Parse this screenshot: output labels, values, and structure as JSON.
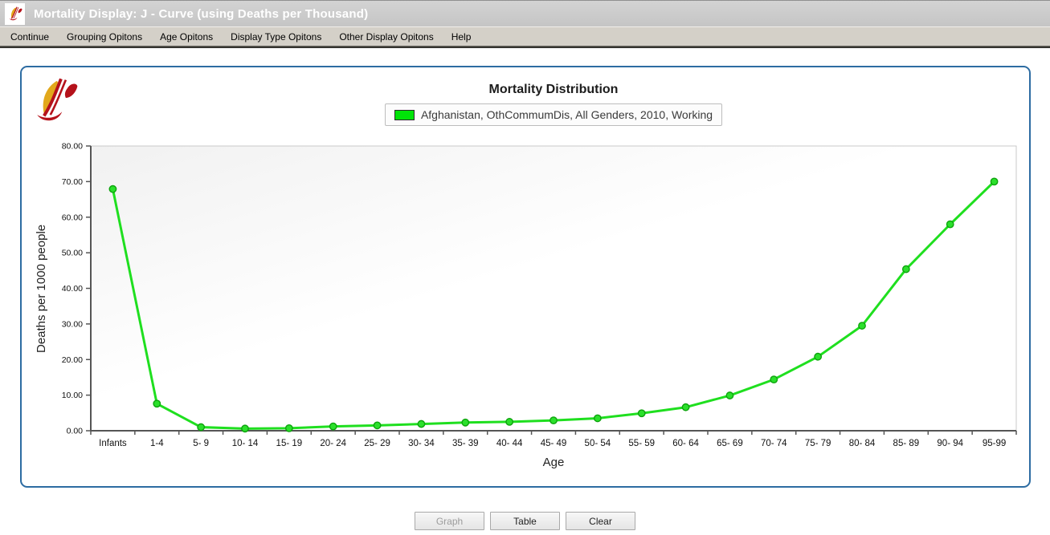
{
  "window": {
    "title": "Mortality Display: J - Curve (using Deaths per Thousand)",
    "icon": "flame-logo"
  },
  "menu": {
    "items": [
      {
        "label": "Continue"
      },
      {
        "label": "Grouping Opitons"
      },
      {
        "label": "Age Opitons"
      },
      {
        "label": "Display Type Opitons"
      },
      {
        "label": "Other Display Opitons"
      },
      {
        "label": "Help"
      }
    ]
  },
  "panel": {
    "logo": "flame-logo",
    "border_color": "#2d6ca2"
  },
  "chart_data": {
    "type": "line",
    "title": "Mortality Distribution",
    "legend": {
      "swatch_color": "#00e408",
      "label": "Afghanistan, OthCommumDis, All Genders, 2010, Working"
    },
    "legend_position": "top",
    "grid": false,
    "xlabel": "Age",
    "ylabel": "Deaths per 1000 people",
    "ylim": [
      0,
      80
    ],
    "yticks": [
      "0.00",
      "10.00",
      "20.00",
      "30.00",
      "40.00",
      "50.00",
      "60.00",
      "70.00",
      "80.00"
    ],
    "categories": [
      "Infants",
      "1-4",
      "5- 9",
      "10- 14",
      "15- 19",
      "20- 24",
      "25- 29",
      "30- 34",
      "35- 39",
      "40- 44",
      "45- 49",
      "50- 54",
      "55- 59",
      "60- 64",
      "65- 69",
      "70- 74",
      "75- 79",
      "80- 84",
      "85- 89",
      "90- 94",
      "95-99"
    ],
    "series": [
      {
        "name": "Afghanistan, OthCommumDis, All Genders, 2010, Working",
        "color": "#1fdf1f",
        "marker_fill": "#2be02b",
        "marker_stroke": "#0da30d",
        "values": [
          67.9,
          7.6,
          1.0,
          0.6,
          0.7,
          1.2,
          1.5,
          1.9,
          2.3,
          2.5,
          2.9,
          3.5,
          4.9,
          6.6,
          9.9,
          14.4,
          20.8,
          29.5,
          45.4,
          58.0,
          70.0
        ]
      }
    ]
  },
  "footer": {
    "buttons": [
      {
        "label": "Graph",
        "enabled": false
      },
      {
        "label": "Table",
        "enabled": true
      },
      {
        "label": "Clear",
        "enabled": true
      }
    ]
  }
}
